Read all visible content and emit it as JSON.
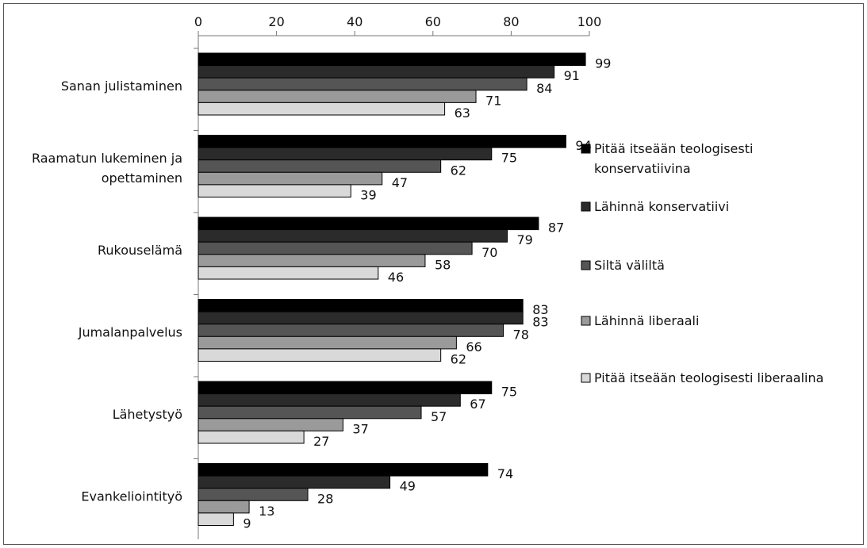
{
  "chart_data": {
    "type": "bar",
    "orientation": "horizontal",
    "xlim": [
      0,
      100
    ],
    "x_ticks": [
      0,
      20,
      40,
      60,
      80,
      100
    ],
    "x_axis_position": "top",
    "grid": false,
    "legend_position": "right",
    "categories": [
      "Sanan julistaminen",
      "Raamatun lukeminen ja opettaminen",
      "Rukouselämä",
      "Jumalanpalvelus",
      "Lähetystyö",
      "Evankeliointityö"
    ],
    "category_lines": [
      [
        "Sanan julistaminen"
      ],
      [
        "Raamatun lukeminen ja",
        "opettaminen"
      ],
      [
        "Rukouselämä"
      ],
      [
        "Jumalanpalvelus"
      ],
      [
        "Lähetystyö"
      ],
      [
        "Evankeliointityö"
      ]
    ],
    "series": [
      {
        "name": "Pitää itseään teologisesti konservatiivina",
        "name_lines": [
          "Pitää itseään teologisesti",
          "konservatiivina"
        ],
        "color": "#000000",
        "values": [
          99,
          94,
          87,
          83,
          75,
          74
        ]
      },
      {
        "name": "Lähinnä konservatiivi",
        "name_lines": [
          "Lähinnä konservatiivi"
        ],
        "color": "#2b2b2b",
        "values": [
          91,
          75,
          79,
          83,
          67,
          49
        ]
      },
      {
        "name": "Siltä väliltä",
        "name_lines": [
          "Siltä väliltä"
        ],
        "color": "#555555",
        "values": [
          84,
          62,
          70,
          78,
          57,
          28
        ]
      },
      {
        "name": "Lähinnä liberaali",
        "name_lines": [
          "Lähinnä liberaali"
        ],
        "color": "#9a9a9a",
        "values": [
          71,
          47,
          58,
          66,
          37,
          13
        ]
      },
      {
        "name": "Pitää itseään teologisesti liberaalina",
        "name_lines": [
          "Pitää itseään teologisesti liberaalina"
        ],
        "color": "#d9d9d9",
        "values": [
          63,
          39,
          46,
          62,
          27,
          9
        ]
      }
    ]
  }
}
